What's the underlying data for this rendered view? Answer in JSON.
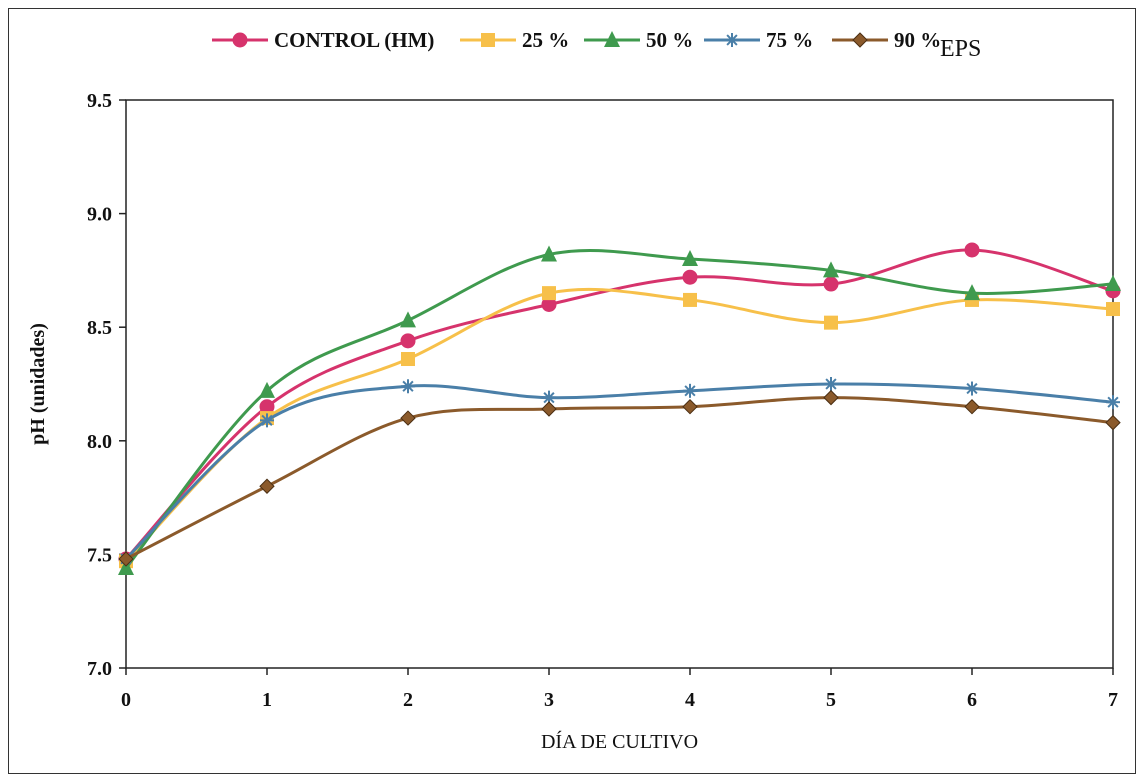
{
  "chart_data": {
    "type": "line",
    "title": "",
    "xlabel": "DÍA DE CULTIVO",
    "ylabel": "pH (unidades)",
    "x": [
      0,
      1,
      2,
      3,
      4,
      5,
      6,
      7
    ],
    "xlim": [
      0,
      7
    ],
    "ylim": [
      7.0,
      9.5
    ],
    "yticks": [
      "7.0",
      "7.5",
      "8.0",
      "8.5",
      "9.0",
      "9.5"
    ],
    "xticks": [
      "0",
      "1",
      "2",
      "3",
      "4",
      "5",
      "6",
      "7"
    ],
    "grid": false,
    "legend_position": "top",
    "legend_suffix": "EPS",
    "series": [
      {
        "name": "CONTROL (HM)",
        "color": "#d6336c",
        "marker": "circle",
        "values": [
          7.48,
          8.15,
          8.44,
          8.6,
          8.72,
          8.69,
          8.84,
          8.66
        ]
      },
      {
        "name": "25 %",
        "color": "#f7c04a",
        "marker": "square",
        "values": [
          7.47,
          8.1,
          8.36,
          8.65,
          8.62,
          8.52,
          8.62,
          8.58
        ]
      },
      {
        "name": "50 %",
        "color": "#3f9a4e",
        "marker": "triangle",
        "values": [
          7.44,
          8.22,
          8.53,
          8.82,
          8.8,
          8.75,
          8.65,
          8.69
        ]
      },
      {
        "name": "75 %",
        "color": "#4a7fa8",
        "marker": "star",
        "values": [
          7.48,
          8.09,
          8.24,
          8.19,
          8.22,
          8.25,
          8.23,
          8.17
        ]
      },
      {
        "name": "90 %",
        "color": "#8b5a2b",
        "marker": "diamond",
        "values": [
          7.48,
          7.8,
          8.1,
          8.14,
          8.15,
          8.19,
          8.15,
          8.08
        ]
      }
    ]
  }
}
